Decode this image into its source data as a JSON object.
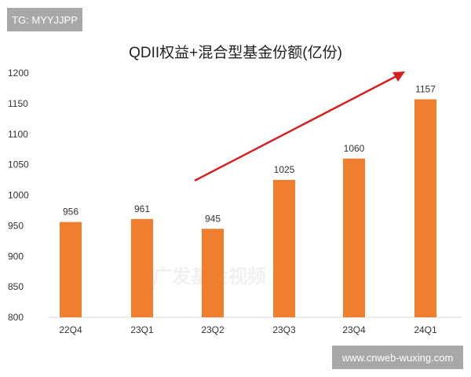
{
  "watermarks": {
    "top_left": "TG: MYYJJPP",
    "bottom_right": "www.cnweb-wuxing.com",
    "center_logo": "广发基金视频"
  },
  "chart_data": {
    "type": "bar",
    "title": "QDII权益+混合型基金份额(亿份)",
    "categories": [
      "22Q4",
      "23Q1",
      "23Q2",
      "23Q3",
      "23Q4",
      "24Q1"
    ],
    "values": [
      956,
      961,
      945,
      1025,
      1060,
      1157
    ],
    "ylim": [
      800,
      1200
    ],
    "yticks": [
      800,
      850,
      900,
      950,
      1000,
      1050,
      1100,
      1150,
      1200
    ],
    "grid": false,
    "data_labels": true,
    "bar_color": "#ef7f2f",
    "annotation": {
      "type": "trend-arrow",
      "color": "#d4201f",
      "direction": "up-right"
    }
  }
}
